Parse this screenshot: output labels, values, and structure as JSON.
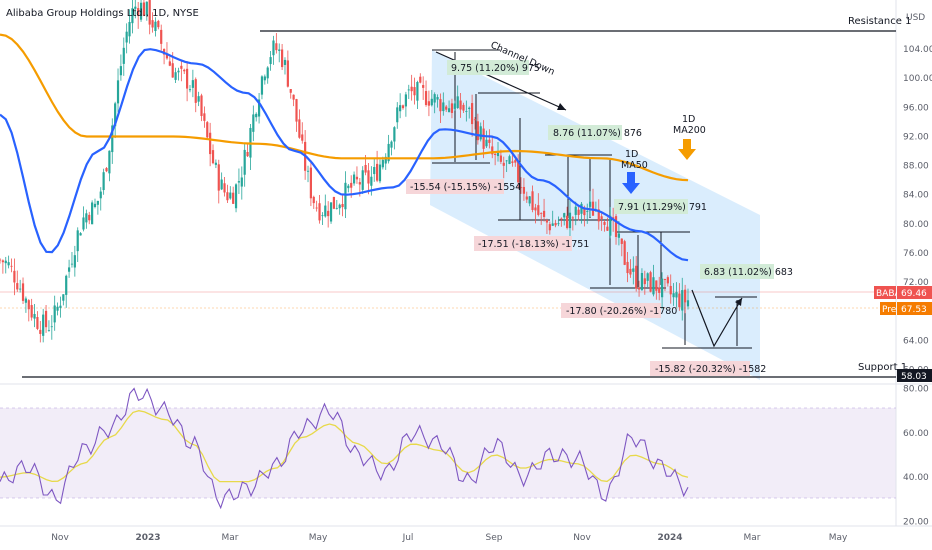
{
  "title": "Alibaba Group Holdings Ltd., 1D, NYSE",
  "currency": "USD",
  "colors": {
    "up": "#26a69a",
    "down": "#ef5350",
    "ma50": "#2962ff",
    "ma200": "#f59c00",
    "rsi": "#7e57c2",
    "rsi_ma": "#e7d94a",
    "channel": "#bbdefb",
    "green_box": "#d2ebd7",
    "red_box": "#f6d6d9",
    "baba": "#ef5350",
    "pre": "#f57c00"
  },
  "right_tags": {
    "usd": "USD",
    "baba_label": "BABA",
    "baba_value": "69.46",
    "pre_label": "Pre",
    "pre_value": "67.53",
    "support_value": "58.03"
  },
  "levels": {
    "resistance": "Resistance 1",
    "support": "Support 1"
  },
  "labels": {
    "channel": "Channel Down",
    "ma50": [
      "1D",
      "MA50"
    ],
    "ma200": [
      "1D",
      "MA200"
    ]
  },
  "annotations": {
    "green": [
      "9.75 (11.20%) 975",
      "8.76 (11.07%) 876",
      "7.91 (11.29%) 791",
      "6.83 (11.02%) 683"
    ],
    "red": [
      "-15.54 (-15.15%) -1554",
      "-17.51 (-18.13%) -1751",
      "-17.80 (-20.26%) -1780",
      "-15.82 (-20.32%) -1582"
    ]
  },
  "chart_data": [
    {
      "type": "candlestick",
      "title": "Alibaba Group Holdings Ltd., 1D, NYSE",
      "y_ticks": [
        60,
        64,
        68,
        72,
        76,
        80,
        84,
        88,
        92,
        96,
        100,
        104
      ],
      "ylim": [
        58,
        108
      ],
      "x_ticks": [
        "Nov",
        "2023",
        "Mar",
        "May",
        "Jul",
        "Sep",
        "Nov",
        "2024",
        "Mar",
        "May"
      ],
      "last_close": 69.46,
      "premarket": 67.53,
      "series": [
        {
          "name": "Price",
          "x": [
            "2022-10",
            "2022-11",
            "2022-12",
            "2023-01",
            "2023-02",
            "2023-03",
            "2023-04",
            "2023-05",
            "2023-06",
            "2023-07",
            "2023-08",
            "2023-09",
            "2023-10",
            "2023-11",
            "2023-12",
            "2024-01"
          ],
          "values": [
            75,
            66,
            82,
            110,
            100,
            84,
            104,
            82,
            86,
            98,
            96,
            88,
            80,
            82,
            72,
            69.5
          ]
        },
        {
          "name": "1D MA50",
          "x": [
            "2022-10",
            "2022-12",
            "2023-01",
            "2023-02",
            "2023-03",
            "2023-04",
            "2023-05",
            "2023-06",
            "2023-07",
            "2023-08",
            "2023-09",
            "2023-10",
            "2023-11",
            "2023-12",
            "2024-01"
          ],
          "values": [
            95,
            76,
            90,
            104,
            102,
            98,
            90,
            84,
            85,
            93,
            92,
            86,
            82,
            79,
            75
          ]
        },
        {
          "name": "1D MA200",
          "x": [
            "2022-10",
            "2023-01",
            "2023-02",
            "2023-04",
            "2023-06",
            "2023-08",
            "2023-10",
            "2023-12",
            "2024-01"
          ],
          "values": [
            106,
            92,
            92,
            91,
            89,
            89,
            90,
            89,
            86
          ]
        }
      ],
      "levels": [
        {
          "name": "Resistance 1",
          "value": 105.6
        },
        {
          "name": "Support 1",
          "value": 58.03
        }
      ],
      "measurements": [
        {
          "change": 9.75,
          "pct": 11.2
        },
        {
          "change": 8.76,
          "pct": 11.07
        },
        {
          "change": 7.91,
          "pct": 11.29
        },
        {
          "change": 6.83,
          "pct": 11.02
        },
        {
          "change": -15.54,
          "pct": -15.15
        },
        {
          "change": -17.51,
          "pct": -18.13
        },
        {
          "change": -17.8,
          "pct": -20.26
        },
        {
          "change": -15.82,
          "pct": -20.32
        }
      ]
    },
    {
      "type": "line",
      "name": "RSI",
      "y_ticks": [
        20,
        40,
        60,
        80
      ],
      "ylim": [
        18,
        82
      ],
      "band": [
        30,
        70
      ],
      "series": [
        {
          "name": "RSI",
          "values": [
            38,
            45,
            30,
            52,
            62,
            78,
            70,
            55,
            30,
            35,
            45,
            62,
            70,
            50,
            42,
            60,
            55,
            38,
            55,
            40,
            50,
            48,
            32,
            58,
            45,
            35
          ]
        },
        {
          "name": "RSI MA",
          "values": [
            40,
            42,
            38,
            46,
            58,
            70,
            66,
            55,
            38,
            38,
            44,
            58,
            64,
            55,
            46,
            55,
            52,
            42,
            50,
            44,
            48,
            46,
            38,
            50,
            46,
            40
          ]
        }
      ]
    }
  ]
}
